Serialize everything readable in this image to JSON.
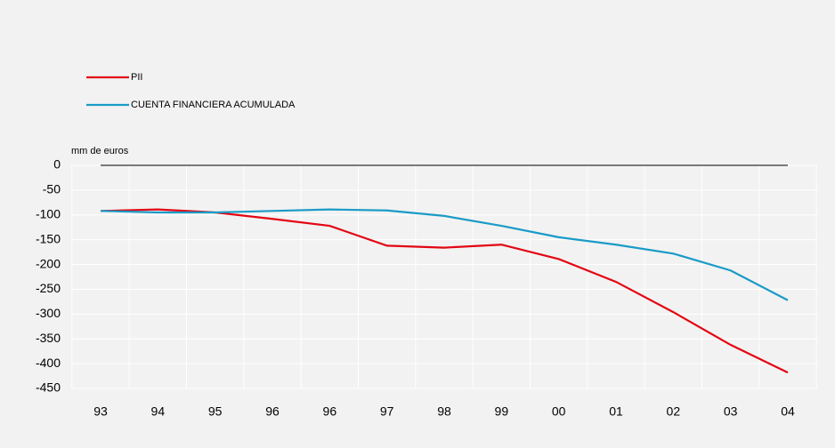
{
  "chart_data": {
    "type": "line",
    "y_label": "mm de euros",
    "categories": [
      "93",
      "94",
      "95",
      "96",
      "96",
      "97",
      "98",
      "99",
      "00",
      "01",
      "02",
      "03",
      "04"
    ],
    "series": [
      {
        "name": "PII",
        "color": "#e30613",
        "values": [
          -92,
          -89,
          -95,
          -108,
          -122,
          -162,
          -166,
          -160,
          -189,
          -235,
          -296,
          -362,
          -418
        ]
      },
      {
        "name": "CUENTA FINANCIERA ACUMULADA",
        "color": "#1a9bc7",
        "values": [
          -92,
          -95,
          -95,
          -92,
          -89,
          -91,
          -102,
          -122,
          -145,
          -160,
          -178,
          -212,
          -272
        ]
      }
    ],
    "ylim": [
      -450,
      0
    ],
    "yticks": [
      0,
      -50,
      -100,
      -150,
      -200,
      -250,
      -300,
      -350,
      -400,
      -450
    ],
    "grid": true,
    "legend": "top-left"
  }
}
